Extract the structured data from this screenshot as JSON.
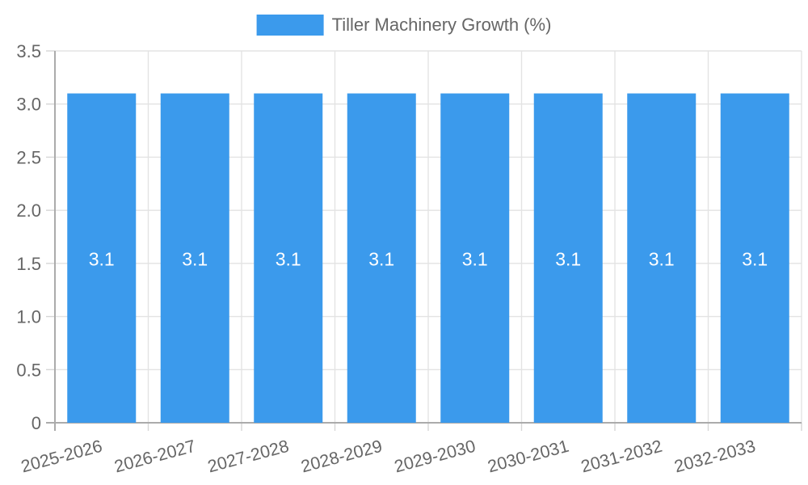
{
  "chart_data": {
    "type": "bar",
    "title": "Tiller Machinery Growth (%)",
    "categories": [
      "2025-2026",
      "2026-2027",
      "2027-2028",
      "2028-2029",
      "2029-2030",
      "2030-2031",
      "2031-2032",
      "2032-2033"
    ],
    "series": [
      {
        "name": "Tiller Machinery Growth (%)",
        "values": [
          3.1,
          3.1,
          3.1,
          3.1,
          3.1,
          3.1,
          3.1,
          3.1
        ]
      }
    ],
    "value_labels": [
      "3.1",
      "3.1",
      "3.1",
      "3.1",
      "3.1",
      "3.1",
      "3.1",
      "3.1"
    ],
    "yticks": [
      "0",
      "0.5",
      "1.0",
      "1.5",
      "2.0",
      "2.5",
      "3.0",
      "3.5"
    ],
    "ylim": [
      0,
      3.5
    ],
    "grid": true,
    "legend_position": "top",
    "colors": {
      "bar": "#3B9AEC",
      "grid": "#E3E3E3",
      "tick": "#D6D6D6",
      "axis_border": "#ABABAB",
      "label_text": "#666666",
      "value_label_text": "#FFFFFF",
      "background": "#FFFFFF"
    }
  }
}
